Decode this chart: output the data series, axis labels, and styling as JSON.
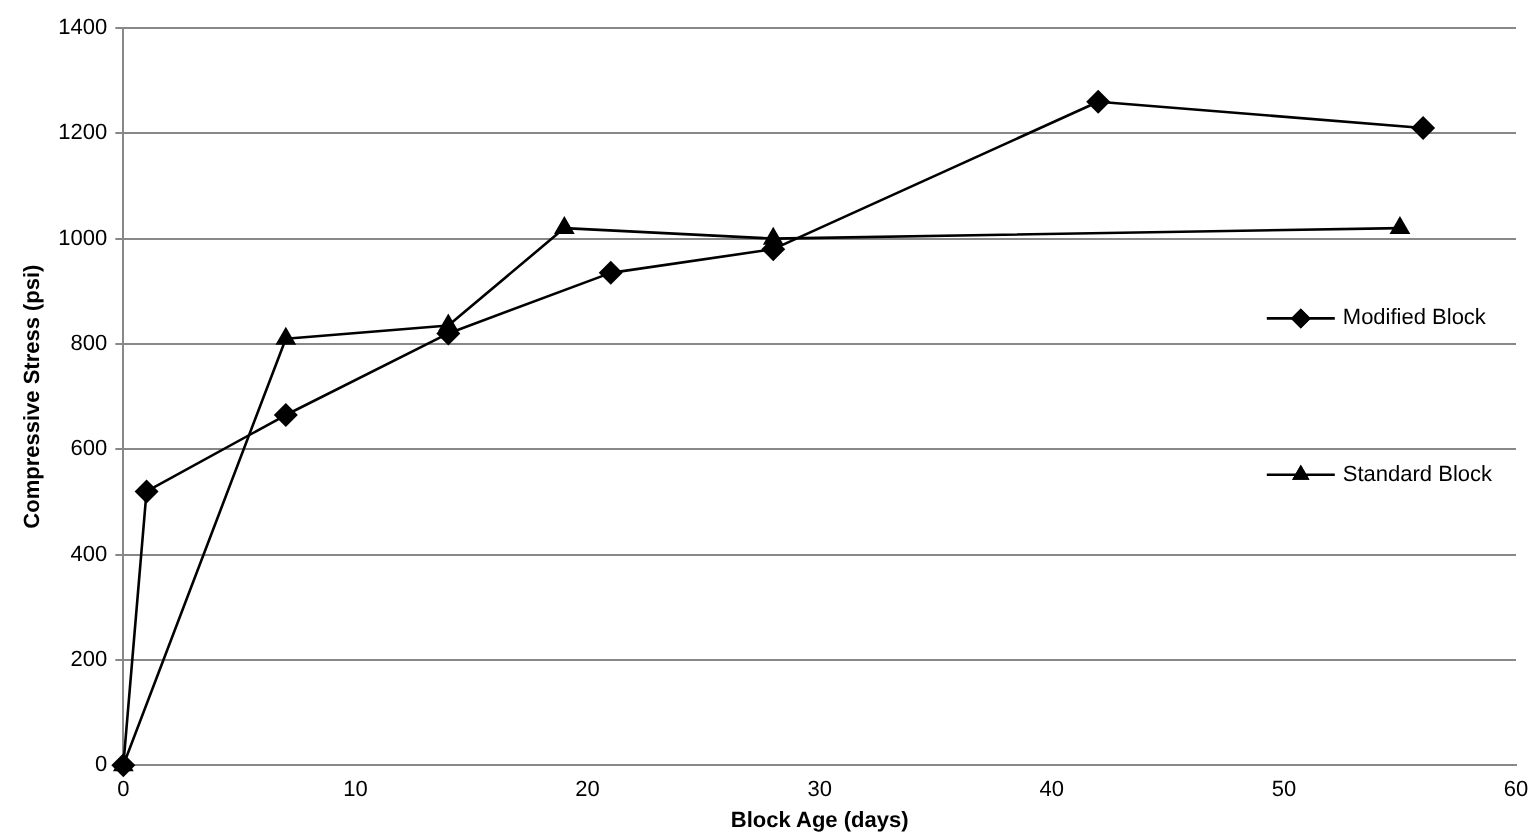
{
  "chart_data": {
    "type": "line",
    "xlabel": "Block Age (days)",
    "ylabel": "Compressive Stress (psi)",
    "xlim": [
      0,
      60
    ],
    "xticks": [
      0,
      10,
      20,
      30,
      40,
      50,
      60
    ],
    "ylim": [
      0,
      1400
    ],
    "yticks": [
      0,
      200,
      400,
      600,
      800,
      1000,
      1200,
      1400
    ],
    "grid": "y",
    "legend": "right",
    "line_style": "solid",
    "series": [
      {
        "name": "Modified Block",
        "color": "#000000",
        "marker": "diamond",
        "x": [
          0,
          1,
          7,
          14,
          21,
          28,
          42,
          56
        ],
        "values": [
          0,
          520,
          665,
          820,
          935,
          980,
          1260,
          1210
        ]
      },
      {
        "name": "Standard Block",
        "color": "#000000",
        "marker": "triangle",
        "x": [
          0,
          7,
          14,
          19,
          28,
          55
        ],
        "values": [
          0,
          810,
          835,
          1020,
          1000,
          1020
        ]
      }
    ]
  }
}
